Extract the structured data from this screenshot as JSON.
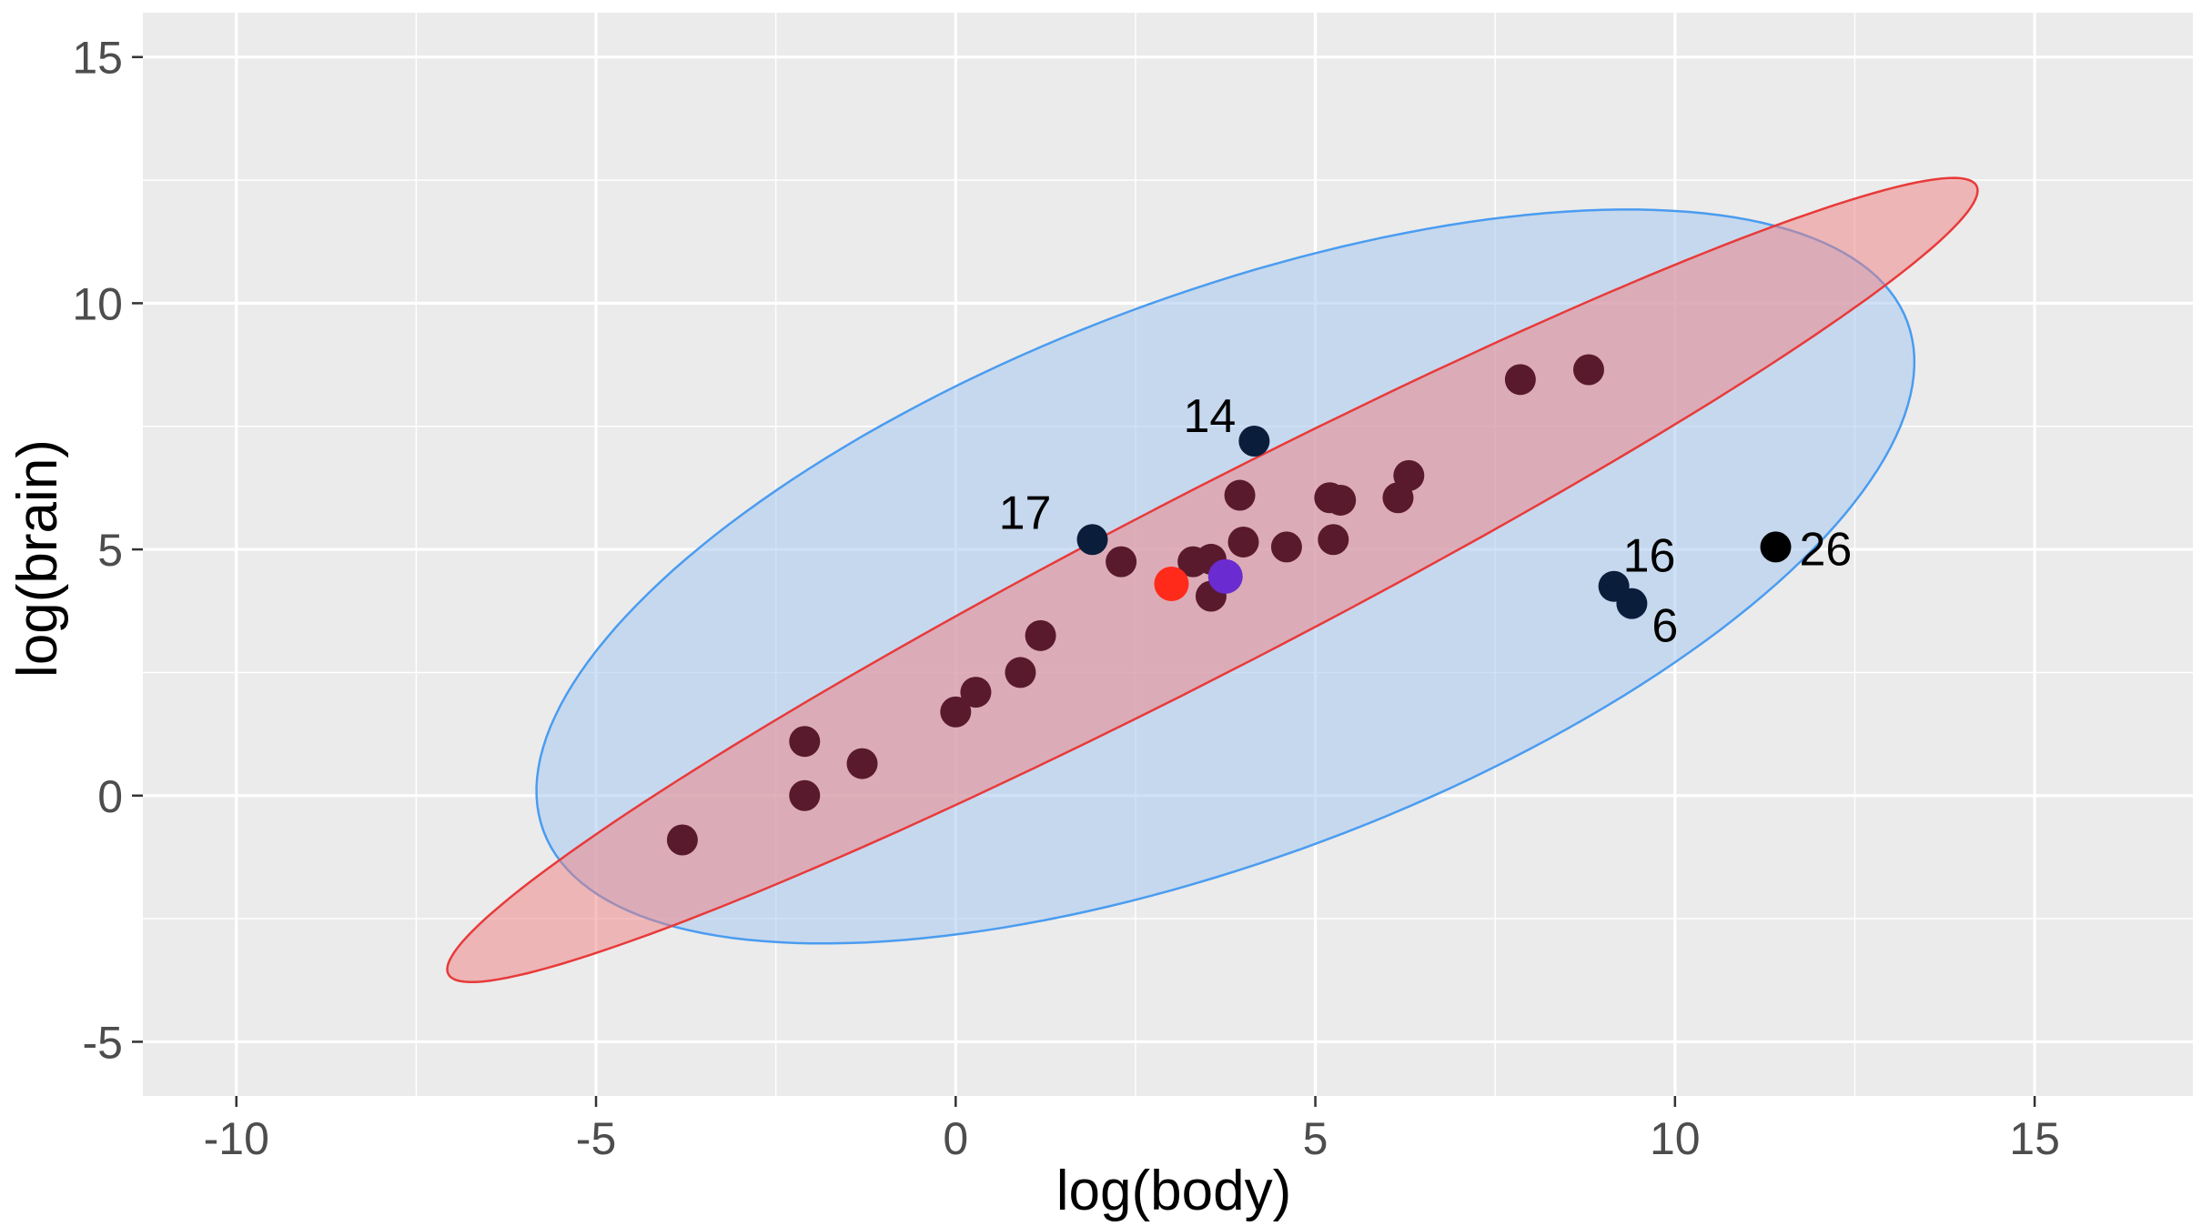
{
  "chart_data": {
    "type": "scatter",
    "title": "",
    "xlabel": "log(body)",
    "ylabel": "log(brain)",
    "xlim": [
      -11.3,
      17.2
    ],
    "ylim": [
      -6.1,
      15.9
    ],
    "xticks": [
      -10,
      -5,
      0,
      5,
      10,
      15
    ],
    "yticks": [
      -5,
      0,
      5,
      10,
      15
    ],
    "xtick_labels": [
      "-10",
      "-5",
      "0",
      "5",
      "10",
      "15"
    ],
    "ytick_labels": [
      "-5",
      "0",
      "5",
      "10",
      "15"
    ],
    "grid": true,
    "legend": "none",
    "colors": {
      "panel": "#ebebeb",
      "grid": "#ffffff",
      "points": "#5a1a2e",
      "outliers": "#0a1e3c",
      "black_point": "#000000",
      "center_red": "#ff2a1a",
      "center_purple": "#6a2bd0",
      "ellipse_red_stroke": "#e83a3a",
      "ellipse_red_fill": "#f08080",
      "ellipse_blue_stroke": "#4a9cf0",
      "ellipse_blue_fill": "#a8c8f0"
    },
    "ellipses": [
      {
        "name": "blue",
        "center": [
          3.75,
          4.45
        ],
        "points": [
          [
            -6.3,
            -0.8
          ],
          [
            -4.1,
            -2.1
          ],
          [
            2.0,
            0.2
          ],
          [
            9.6,
            3.5
          ],
          [
            13.9,
            9.5
          ],
          [
            11.7,
            10.9
          ],
          [
            5.0,
            8.9
          ],
          [
            -2.0,
            5.0
          ]
        ]
      },
      {
        "name": "red",
        "center": [
          3.0,
          4.25
        ],
        "points": [
          [
            -8.6,
            -4.6
          ],
          [
            -8.8,
            -4.5
          ],
          [
            -4.0,
            -2.2
          ],
          [
            5.0,
            2.5
          ],
          [
            13.0,
            8.0
          ],
          [
            14.7,
            13.1
          ],
          [
            14.5,
            13.0
          ],
          [
            10.0,
            10.5
          ],
          [
            0.0,
            3.8
          ],
          [
            -5.0,
            0.0
          ]
        ]
      }
    ],
    "points": [
      {
        "x": -3.8,
        "y": -0.9,
        "group": "main"
      },
      {
        "x": -2.1,
        "y": 1.1,
        "group": "main"
      },
      {
        "x": -2.1,
        "y": 0.0,
        "group": "main"
      },
      {
        "x": -1.3,
        "y": 0.65,
        "group": "main"
      },
      {
        "x": 0.0,
        "y": 1.7,
        "group": "main"
      },
      {
        "x": 0.28,
        "y": 2.1,
        "group": "main"
      },
      {
        "x": 0.9,
        "y": 2.5,
        "group": "main"
      },
      {
        "x": 1.18,
        "y": 3.25,
        "group": "main"
      },
      {
        "x": 2.3,
        "y": 4.75,
        "group": "main"
      },
      {
        "x": 3.3,
        "y": 4.75,
        "group": "main"
      },
      {
        "x": 3.55,
        "y": 4.8,
        "group": "main"
      },
      {
        "x": 3.55,
        "y": 4.05,
        "group": "main"
      },
      {
        "x": 3.95,
        "y": 6.1,
        "group": "main"
      },
      {
        "x": 4.0,
        "y": 5.15,
        "group": "main"
      },
      {
        "x": 4.6,
        "y": 5.05,
        "group": "main"
      },
      {
        "x": 5.2,
        "y": 6.05,
        "group": "main"
      },
      {
        "x": 5.35,
        "y": 6.0,
        "group": "main"
      },
      {
        "x": 5.25,
        "y": 5.2,
        "group": "main"
      },
      {
        "x": 6.15,
        "y": 6.05,
        "group": "main"
      },
      {
        "x": 6.3,
        "y": 6.5,
        "group": "main"
      },
      {
        "x": 7.85,
        "y": 8.45,
        "group": "main"
      },
      {
        "x": 8.8,
        "y": 8.65,
        "group": "main"
      },
      {
        "x": 1.9,
        "y": 5.2,
        "group": "outlier",
        "label": "17"
      },
      {
        "x": 4.15,
        "y": 7.2,
        "group": "outlier",
        "label": "14"
      },
      {
        "x": 9.15,
        "y": 4.25,
        "group": "outlier",
        "label": "16"
      },
      {
        "x": 9.4,
        "y": 3.9,
        "group": "outlier",
        "label": "6"
      },
      {
        "x": 11.4,
        "y": 5.05,
        "group": "black",
        "label": "26"
      }
    ],
    "centers": [
      {
        "name": "red-center",
        "x": 3.0,
        "y": 4.3,
        "color": "#ff2a1a"
      },
      {
        "name": "purple-center",
        "x": 3.75,
        "y": 4.45,
        "color": "#6a2bd0"
      }
    ]
  }
}
